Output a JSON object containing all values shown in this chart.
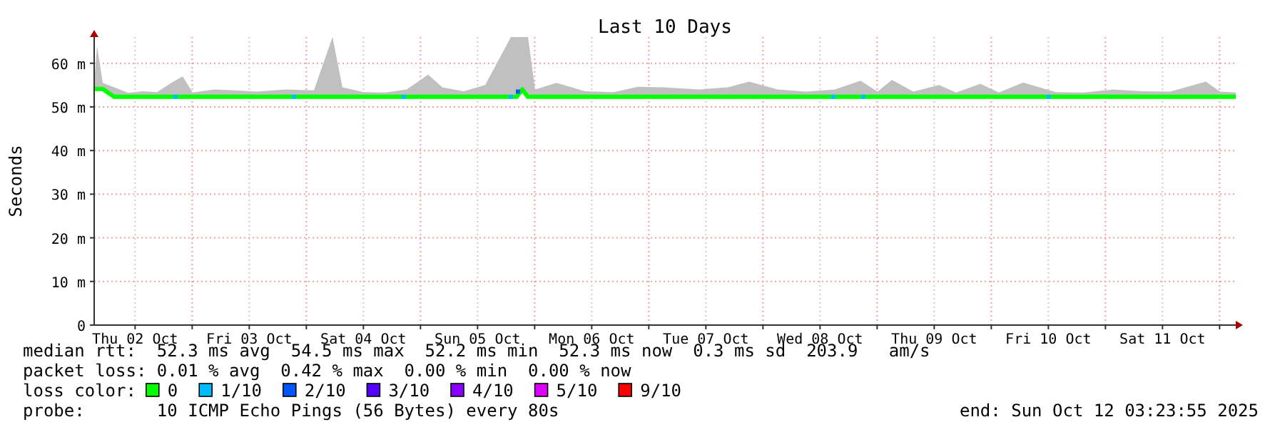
{
  "chart_data": {
    "type": "line",
    "title": "Last 10 Days",
    "ylabel": "Seconds",
    "xlim": [
      "2025-10-02T03:24",
      "2025-10-12T03:24"
    ],
    "xticks": [
      {
        "value": "2025-10-02T12:00",
        "label": "Thu 02 Oct"
      },
      {
        "value": "2025-10-03T00:00",
        "label": null
      },
      {
        "value": "2025-10-03T12:00",
        "label": "Fri 03 Oct"
      },
      {
        "value": "2025-10-04T00:00",
        "label": null
      },
      {
        "value": "2025-10-04T12:00",
        "label": "Sat 04 Oct"
      },
      {
        "value": "2025-10-05T00:00",
        "label": null
      },
      {
        "value": "2025-10-05T12:00",
        "label": "Sun 05 Oct"
      },
      {
        "value": "2025-10-06T00:00",
        "label": null
      },
      {
        "value": "2025-10-06T12:00",
        "label": "Mon 06 Oct"
      },
      {
        "value": "2025-10-07T00:00",
        "label": null
      },
      {
        "value": "2025-10-07T12:00",
        "label": "Tue 07 Oct"
      },
      {
        "value": "2025-10-08T00:00",
        "label": null
      },
      {
        "value": "2025-10-08T12:00",
        "label": "Wed 08 Oct"
      },
      {
        "value": "2025-10-09T00:00",
        "label": null
      },
      {
        "value": "2025-10-09T12:00",
        "label": "Thu 09 Oct"
      },
      {
        "value": "2025-10-10T00:00",
        "label": null
      },
      {
        "value": "2025-10-10T12:00",
        "label": "Fri 10 Oct"
      },
      {
        "value": "2025-10-11T00:00",
        "label": null
      },
      {
        "value": "2025-10-11T12:00",
        "label": "Sat 11 Oct"
      },
      {
        "value": "2025-10-12T00:00",
        "label": null
      }
    ],
    "ylim": [
      0,
      66
    ],
    "yticks": [
      0,
      {
        "value": 10,
        "label": "10 m"
      },
      {
        "value": 20,
        "label": "20 m"
      },
      {
        "value": 30,
        "label": "30 m"
      },
      {
        "value": 40,
        "label": "40 m"
      },
      {
        "value": 50,
        "label": "50 m"
      },
      {
        "value": 60,
        "label": "60 m"
      }
    ],
    "grid": true,
    "legend": "bottom",
    "legend_title": "loss color:",
    "x": [
      "2025-10-02T03:24",
      "2025-10-02T04:00",
      "2025-10-02T05:12",
      "2025-10-02T07:36",
      "2025-10-02T10:36",
      "2025-10-02T13:36",
      "2025-10-02T16:36",
      "2025-10-02T19:36",
      "2025-10-02T22:00",
      "2025-10-03T00:06",
      "2025-10-03T04:36",
      "2025-10-03T09:06",
      "2025-10-03T13:36",
      "2025-10-03T19:36",
      "2025-10-04T01:36",
      "2025-10-04T05:30",
      "2025-10-04T07:36",
      "2025-10-04T12:06",
      "2025-10-04T16:36",
      "2025-10-04T21:06",
      "2025-10-05T01:36",
      "2025-10-05T04:36",
      "2025-10-05T09:06",
      "2025-10-05T13:36",
      "2025-10-05T19:00",
      "2025-10-05T20:12",
      "2025-10-05T21:24",
      "2025-10-05T22:36",
      "2025-10-06T00:06",
      "2025-10-06T04:36",
      "2025-10-06T10:36",
      "2025-10-06T16:36",
      "2025-10-06T21:42",
      "2025-10-07T03:06",
      "2025-10-07T10:36",
      "2025-10-07T16:36",
      "2025-10-07T21:06",
      "2025-10-08T03:06",
      "2025-10-08T09:06",
      "2025-10-08T15:06",
      "2025-10-08T20:30",
      "2025-10-09T00:06",
      "2025-10-09T03:06",
      "2025-10-09T07:36",
      "2025-10-09T13:00",
      "2025-10-09T16:36",
      "2025-10-09T21:42",
      "2025-10-10T01:36",
      "2025-10-10T06:42",
      "2025-10-10T13:36",
      "2025-10-10T19:36",
      "2025-10-11T01:36",
      "2025-10-11T07:36",
      "2025-10-11T13:36",
      "2025-10-11T21:06",
      "2025-10-12T00:06",
      "2025-10-12T03:24"
    ],
    "series": [
      {
        "name": "0",
        "color": "#00ff00",
        "values": [
          54.1,
          54.1,
          54.1,
          52.3,
          52.3,
          52.3,
          52.3,
          52.3,
          52.3,
          52.3,
          52.3,
          52.3,
          52.3,
          52.3,
          52.3,
          52.3,
          52.3,
          52.3,
          52.3,
          52.3,
          52.3,
          52.3,
          52.3,
          52.3,
          52.3,
          52.3,
          54,
          52.3,
          52.3,
          52.3,
          52.3,
          52.3,
          52.3,
          52.3,
          52.3,
          52.3,
          52.3,
          52.3,
          52.3,
          52.3,
          52.3,
          52.3,
          52.3,
          52.3,
          52.3,
          52.3,
          52.3,
          52.3,
          52.3,
          52.3,
          52.3,
          52.3,
          52.3,
          52.3,
          52.3,
          52.3,
          52.3
        ],
        "lower": [
          54.1,
          54.1,
          54.1,
          52.3,
          52.3,
          52.3,
          52.3,
          52.3,
          52.3,
          52.3,
          52.3,
          52.3,
          52.3,
          52.3,
          52.3,
          52.3,
          52.3,
          52.3,
          52.3,
          52.3,
          52.3,
          52.3,
          52.3,
          52.3,
          52.3,
          52.3,
          54,
          52.3,
          52.3,
          52.3,
          52.3,
          52.3,
          52.3,
          52.3,
          52.3,
          52.3,
          52.3,
          52.3,
          52.3,
          52.3,
          52.3,
          52.3,
          52.3,
          52.3,
          52.3,
          52.3,
          52.3,
          52.3,
          52.3,
          52.3,
          52.3,
          52.3,
          52.3,
          52.3,
          52.3,
          52.3,
          52.3
        ],
        "upper": [
          55.5,
          64,
          55.5,
          54.5,
          53.2,
          53.6,
          53.4,
          55.5,
          57,
          53.3,
          54,
          53.8,
          53.5,
          54,
          53.8,
          66,
          54.5,
          53.4,
          53.3,
          54,
          57.4,
          54.5,
          53.6,
          55,
          66,
          66,
          66,
          66,
          54,
          55.5,
          53.6,
          53.4,
          54.6,
          54.5,
          54,
          54.5,
          55.8,
          54,
          53.5,
          54,
          56,
          53.5,
          56.2,
          53.5,
          55,
          53.3,
          55.3,
          53.3,
          55.6,
          53.4,
          53.3,
          54,
          53.6,
          53.5,
          55.8,
          53.5,
          53.3
        ]
      },
      {
        "name": "1/10",
        "type": "scatter",
        "color": "#00bbff",
        "x": [
          "2025-10-02T20:30",
          "2025-10-03T21:24",
          "2025-10-04T20:30",
          "2025-10-05T19:00",
          "2025-10-08T14:48",
          "2025-10-08T21:06",
          "2025-10-10T12:06"
        ],
        "values": [
          52.3,
          52.3,
          52.3,
          52.3,
          52.3,
          52.3,
          52.3
        ]
      },
      {
        "name": "2/10",
        "type": "scatter",
        "color": "#0055ff",
        "x": [
          "2025-10-05T20:30"
        ],
        "values": [
          53.5
        ]
      },
      {
        "name": "3/10",
        "type": "scatter",
        "color": "#5500ff",
        "values": [
          null,
          null,
          null,
          null,
          null,
          null,
          null,
          null,
          null,
          null,
          null,
          null,
          null,
          null,
          null,
          null,
          null,
          null,
          null,
          null,
          null,
          null,
          null,
          null,
          null,
          null,
          null,
          null,
          null,
          null,
          null,
          null,
          null,
          null,
          null,
          null,
          null,
          null,
          null,
          null,
          null,
          null,
          null,
          null,
          null,
          null,
          null,
          null,
          null,
          null,
          null,
          null,
          null,
          null,
          null,
          null,
          null
        ]
      },
      {
        "name": "4/10",
        "type": "scatter",
        "color": "#8a00ff",
        "values": [
          null,
          null,
          null,
          null,
          null,
          null,
          null,
          null,
          null,
          null,
          null,
          null,
          null,
          null,
          null,
          null,
          null,
          null,
          null,
          null,
          null,
          null,
          null,
          null,
          null,
          null,
          null,
          null,
          null,
          null,
          null,
          null,
          null,
          null,
          null,
          null,
          null,
          null,
          null,
          null,
          null,
          null,
          null,
          null,
          null,
          null,
          null,
          null,
          null,
          null,
          null,
          null,
          null,
          null,
          null,
          null,
          null
        ]
      },
      {
        "name": "5/10",
        "type": "scatter",
        "color": "#dd00ff",
        "values": [
          null,
          null,
          null,
          null,
          null,
          null,
          null,
          null,
          null,
          null,
          null,
          null,
          null,
          null,
          null,
          null,
          null,
          null,
          null,
          null,
          null,
          null,
          null,
          null,
          null,
          null,
          null,
          null,
          null,
          null,
          null,
          null,
          null,
          null,
          null,
          null,
          null,
          null,
          null,
          null,
          null,
          null,
          null,
          null,
          null,
          null,
          null,
          null,
          null,
          null,
          null,
          null,
          null,
          null,
          null,
          null,
          null
        ]
      },
      {
        "name": "9/10",
        "type": "scatter",
        "color": "#ff0000",
        "values": [
          null,
          null,
          null,
          null,
          null,
          null,
          null,
          null,
          null,
          null,
          null,
          null,
          null,
          null,
          null,
          null,
          null,
          null,
          null,
          null,
          null,
          null,
          null,
          null,
          null,
          null,
          null,
          null,
          null,
          null,
          null,
          null,
          null,
          null,
          null,
          null,
          null,
          null,
          null,
          null,
          null,
          null,
          null,
          null,
          null,
          null,
          null,
          null,
          null,
          null,
          null,
          null,
          null,
          null,
          null,
          null,
          null
        ]
      }
    ],
    "annotations": [
      "median rtt:  52.3 ms avg  54.5 ms max  52.2 ms min  52.3 ms now  0.3 ms sd  203.9   am/s",
      "packet loss: 0.01 % avg  0.42 % max  0.00 % min  0.00 % now",
      "probe:       10 ICMP Echo Pings (56 Bytes) every 80s",
      "end: Sun Oct 12 03:23:55 2025"
    ]
  }
}
